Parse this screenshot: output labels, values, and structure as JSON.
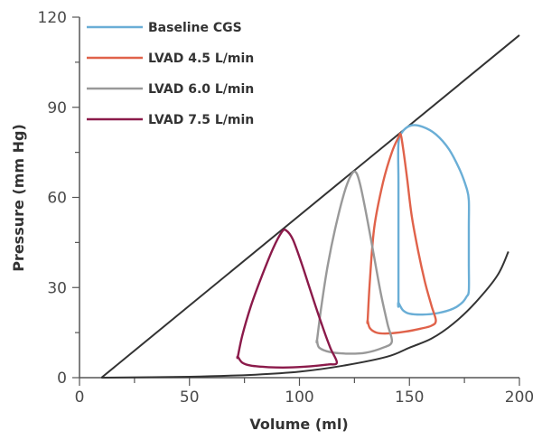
{
  "chart_data": {
    "type": "line",
    "title": "",
    "xlabel": "Volume (ml)",
    "ylabel": "Pressure (mm Hg)",
    "xlim": [
      0,
      200
    ],
    "ylim": [
      0,
      120
    ],
    "x_ticks": [
      0,
      50,
      100,
      150,
      200
    ],
    "y_ticks": [
      0,
      30,
      60,
      90,
      120
    ],
    "grid": false,
    "legend_position": "top-left",
    "reference_lines": [
      {
        "role": "ESPVR",
        "color": "#333333",
        "points": [
          [
            10,
            0
          ],
          [
            200,
            114
          ]
        ]
      },
      {
        "role": "EDPVR",
        "color": "#333333",
        "points": [
          [
            10,
            0
          ],
          [
            50,
            0.3
          ],
          [
            80,
            1
          ],
          [
            100,
            2
          ],
          [
            120,
            4
          ],
          [
            140,
            7
          ],
          [
            150,
            10
          ],
          [
            160,
            13
          ],
          [
            170,
            18
          ],
          [
            180,
            25
          ],
          [
            190,
            34
          ],
          [
            195,
            42
          ]
        ]
      }
    ],
    "series": [
      {
        "name": "Baseline CGS",
        "color": "#6aaed6",
        "points": [
          [
            145,
            25
          ],
          [
            145,
            45
          ],
          [
            145,
            65
          ],
          [
            145,
            78
          ],
          [
            147,
            82
          ],
          [
            151,
            84
          ],
          [
            156,
            83.5
          ],
          [
            162,
            81
          ],
          [
            168,
            76
          ],
          [
            173,
            69
          ],
          [
            176,
            63
          ],
          [
            177,
            59
          ],
          [
            177,
            50
          ],
          [
            177,
            38
          ],
          [
            177,
            29
          ],
          [
            176,
            27
          ],
          [
            174,
            25
          ],
          [
            170,
            23
          ],
          [
            163,
            21.5
          ],
          [
            156,
            21
          ],
          [
            150,
            21.3
          ],
          [
            147,
            22.5
          ],
          [
            145,
            25
          ]
        ]
      },
      {
        "name": "LVAD 4.5 L/min",
        "color": "#e0624a",
        "points": [
          [
            131,
            19
          ],
          [
            132,
            32
          ],
          [
            134,
            50
          ],
          [
            138,
            65
          ],
          [
            142,
            75
          ],
          [
            145,
            80
          ],
          [
            146,
            81
          ],
          [
            147,
            77
          ],
          [
            149,
            66
          ],
          [
            151,
            54
          ],
          [
            154,
            42
          ],
          [
            157,
            32
          ],
          [
            160,
            24
          ],
          [
            162,
            19
          ],
          [
            160,
            17.3
          ],
          [
            155,
            16.3
          ],
          [
            148,
            15.3
          ],
          [
            140,
            14.7
          ],
          [
            135,
            15
          ],
          [
            132,
            16.5
          ],
          [
            131,
            19
          ]
        ]
      },
      {
        "name": "LVAD 6.0 L/min",
        "color": "#999999",
        "points": [
          [
            108,
            12.5
          ],
          [
            110,
            24
          ],
          [
            113,
            38
          ],
          [
            117,
            52
          ],
          [
            121,
            63
          ],
          [
            124,
            68
          ],
          [
            126,
            68
          ],
          [
            128,
            63
          ],
          [
            131,
            52
          ],
          [
            134,
            40
          ],
          [
            137,
            28
          ],
          [
            140,
            18
          ],
          [
            142,
            12
          ],
          [
            138,
            10
          ],
          [
            130,
            8.3
          ],
          [
            122,
            8
          ],
          [
            114,
            8.5
          ],
          [
            109,
            10
          ],
          [
            108,
            12.5
          ]
        ]
      },
      {
        "name": "LVAD 7.5 L/min",
        "color": "#8b1a4a",
        "points": [
          [
            72,
            7
          ],
          [
            74,
            14
          ],
          [
            78,
            24
          ],
          [
            83,
            34
          ],
          [
            88,
            43
          ],
          [
            92,
            48.5
          ],
          [
            94,
            49
          ],
          [
            97,
            46
          ],
          [
            101,
            38
          ],
          [
            105,
            29
          ],
          [
            110,
            18
          ],
          [
            114,
            10
          ],
          [
            117,
            5
          ],
          [
            113,
            4.4
          ],
          [
            105,
            3.8
          ],
          [
            95,
            3.4
          ],
          [
            86,
            3.5
          ],
          [
            78,
            4
          ],
          [
            74,
            5
          ],
          [
            72,
            7
          ]
        ]
      }
    ]
  }
}
